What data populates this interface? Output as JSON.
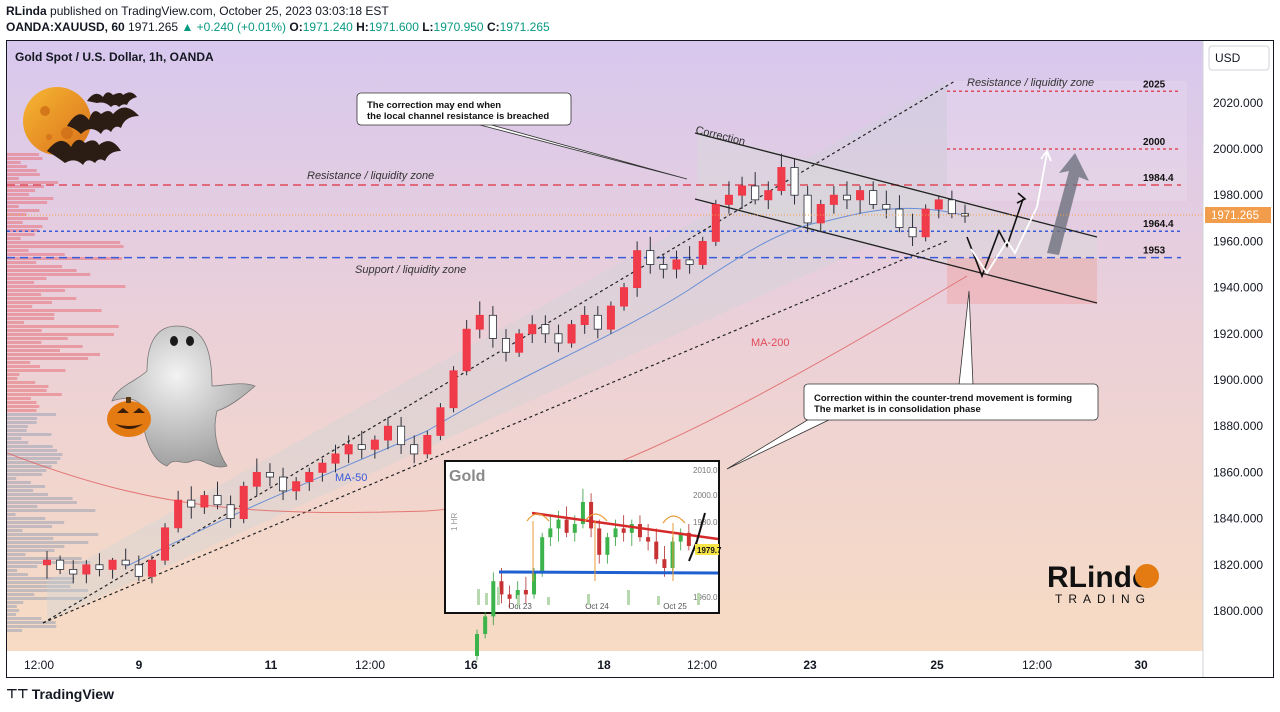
{
  "header": {
    "publisher": "RLinda",
    "published_text": "published on TradingView.com, October 25, 2023 03:03:18 EST",
    "symbol": "OANDA:XAUUSD, 60",
    "last": "1971.265",
    "change": "▲ +0.240 (+0.01%)",
    "o_label": "O:",
    "o_val": "1971.240",
    "h_label": "H:",
    "h_val": "1971.600",
    "l_label": "L:",
    "l_val": "1970.950",
    "c_label": "C:",
    "c_val": "1971.265"
  },
  "brand": {
    "logo": "⊤⊤",
    "text": "TradingView"
  },
  "chart_data": {
    "type": "candlestick",
    "title": "Gold Spot / U.S. Dollar, 1h, OANDA",
    "currency": "USD",
    "last_price": "1971.265",
    "y_ticks": [
      {
        "v": 2020,
        "label": "2020.000"
      },
      {
        "v": 2000,
        "label": "2000.000"
      },
      {
        "v": 1980,
        "label": "1980.000"
      },
      {
        "v": 1960,
        "label": "1960.000"
      },
      {
        "v": 1940,
        "label": "1940.000"
      },
      {
        "v": 1920,
        "label": "1920.000"
      },
      {
        "v": 1900,
        "label": "1900.000"
      },
      {
        "v": 1880,
        "label": "1880.000"
      },
      {
        "v": 1860,
        "label": "1860.000"
      },
      {
        "v": 1840,
        "label": "1840.000"
      },
      {
        "v": 1820,
        "label": "1820.000"
      },
      {
        "v": 1800,
        "label": "1800.000"
      }
    ],
    "x_ticks": [
      "12:00",
      "9",
      "11",
      "12:00",
      "16",
      "18",
      "12:00",
      "23",
      "25",
      "12:00",
      "30"
    ],
    "levels": [
      {
        "value": 2025,
        "label": "2025",
        "color": "#e04b5a",
        "dash": "3,3"
      },
      {
        "value": 2000,
        "label": "2000",
        "color": "#e04b5a",
        "dash": "3,3"
      },
      {
        "value": 1984.4,
        "label": "1984.4",
        "color": "#e04b5a",
        "dash": "8,5"
      },
      {
        "value": 1964.4,
        "label": "1964.4",
        "color": "#3a5bd9",
        "dash": "3,3"
      },
      {
        "value": 1953,
        "label": "1953",
        "color": "#3a5bd9",
        "dash": "8,5"
      }
    ],
    "annotations": [
      {
        "text": "Resistance / liquidity zone"
      },
      {
        "text": "Resistance / liquidity zone"
      },
      {
        "text": "Support / liquidity zone"
      },
      {
        "text": "Correction"
      },
      {
        "text": "MA-200"
      },
      {
        "text": "MA-50"
      }
    ],
    "callouts": [
      {
        "lines": [
          "The correction may end when",
          "the local channel resistance is breached"
        ]
      },
      {
        "lines": [
          "Correction within the counter-trend movement is forming",
          "The market is in consolidation phase"
        ]
      }
    ],
    "candles": [
      [
        1820,
        1826,
        1814,
        1822
      ],
      [
        1822,
        1824,
        1816,
        1818
      ],
      [
        1818,
        1822,
        1812,
        1816
      ],
      [
        1816,
        1822,
        1812,
        1820
      ],
      [
        1820,
        1825,
        1815,
        1818
      ],
      [
        1818,
        1823,
        1814,
        1822
      ],
      [
        1822,
        1827,
        1818,
        1820
      ],
      [
        1820,
        1824,
        1813,
        1815
      ],
      [
        1815,
        1824,
        1812,
        1822
      ],
      [
        1822,
        1838,
        1820,
        1836
      ],
      [
        1836,
        1852,
        1834,
        1848
      ],
      [
        1848,
        1854,
        1840,
        1845
      ],
      [
        1845,
        1852,
        1842,
        1850
      ],
      [
        1850,
        1856,
        1844,
        1846
      ],
      [
        1846,
        1850,
        1836,
        1840
      ],
      [
        1840,
        1856,
        1838,
        1854
      ],
      [
        1854,
        1866,
        1850,
        1860
      ],
      [
        1860,
        1864,
        1854,
        1858
      ],
      [
        1858,
        1862,
        1848,
        1852
      ],
      [
        1852,
        1858,
        1848,
        1856
      ],
      [
        1856,
        1862,
        1852,
        1860
      ],
      [
        1860,
        1866,
        1856,
        1864
      ],
      [
        1864,
        1872,
        1860,
        1868
      ],
      [
        1868,
        1876,
        1864,
        1872
      ],
      [
        1872,
        1878,
        1866,
        1870
      ],
      [
        1870,
        1876,
        1866,
        1874
      ],
      [
        1874,
        1884,
        1870,
        1880
      ],
      [
        1880,
        1884,
        1868,
        1872
      ],
      [
        1872,
        1876,
        1864,
        1868
      ],
      [
        1868,
        1878,
        1866,
        1876
      ],
      [
        1876,
        1890,
        1874,
        1888
      ],
      [
        1888,
        1906,
        1886,
        1904
      ],
      [
        1904,
        1926,
        1902,
        1922
      ],
      [
        1922,
        1934,
        1918,
        1928
      ],
      [
        1928,
        1932,
        1914,
        1918
      ],
      [
        1918,
        1922,
        1908,
        1912
      ],
      [
        1912,
        1922,
        1910,
        1920
      ],
      [
        1920,
        1928,
        1916,
        1924
      ],
      [
        1924,
        1928,
        1916,
        1920
      ],
      [
        1920,
        1924,
        1912,
        1916
      ],
      [
        1916,
        1926,
        1914,
        1924
      ],
      [
        1924,
        1932,
        1920,
        1928
      ],
      [
        1928,
        1932,
        1918,
        1922
      ],
      [
        1922,
        1934,
        1920,
        1932
      ],
      [
        1932,
        1942,
        1930,
        1940
      ],
      [
        1940,
        1960,
        1936,
        1956
      ],
      [
        1956,
        1962,
        1946,
        1950
      ],
      [
        1950,
        1954,
        1944,
        1948
      ],
      [
        1948,
        1956,
        1944,
        1952
      ],
      [
        1952,
        1958,
        1946,
        1950
      ],
      [
        1950,
        1962,
        1948,
        1960
      ],
      [
        1960,
        1978,
        1958,
        1976
      ],
      [
        1976,
        1986,
        1972,
        1980
      ],
      [
        1980,
        1988,
        1974,
        1984
      ],
      [
        1984,
        1990,
        1976,
        1978
      ],
      [
        1978,
        1986,
        1974,
        1982
      ],
      [
        1982,
        1998,
        1980,
        1992
      ],
      [
        1992,
        1996,
        1976,
        1980
      ],
      [
        1980,
        1984,
        1964,
        1968
      ],
      [
        1968,
        1978,
        1964,
        1976
      ],
      [
        1976,
        1984,
        1972,
        1980
      ],
      [
        1980,
        1986,
        1974,
        1978
      ],
      [
        1978,
        1984,
        1972,
        1982
      ],
      [
        1982,
        1986,
        1974,
        1976
      ],
      [
        1976,
        1982,
        1970,
        1974
      ],
      [
        1974,
        1980,
        1964,
        1966
      ],
      [
        1966,
        1972,
        1958,
        1962
      ],
      [
        1962,
        1976,
        1960,
        1974
      ],
      [
        1974,
        1980,
        1970,
        1978
      ],
      [
        1978,
        1982,
        1970,
        1972
      ],
      [
        1972,
        1976,
        1968,
        1971
      ]
    ],
    "inset": {
      "title": "Gold",
      "y_ticks": [
        "2010.0",
        "2000.0",
        "1980.0",
        "1970.0",
        "1960.0"
      ],
      "x_ticks": [
        "Oct 23",
        "Oct 24",
        "Oct 25"
      ],
      "price_tag": "1979.7",
      "ylabel": "1 HR"
    },
    "watermark": {
      "line1": "RLindo",
      "line2": "TRADING"
    }
  }
}
